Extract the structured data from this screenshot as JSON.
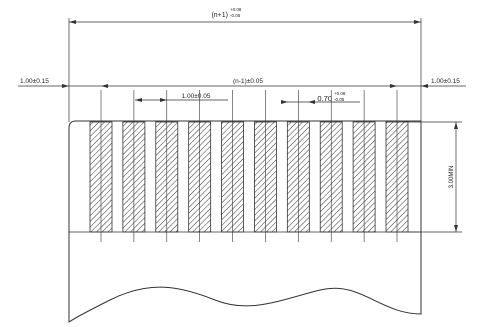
{
  "dimensions": {
    "overall_width": "(n+1)",
    "overall_width_tol_upper": "+0.08",
    "overall_width_tol_lower": "-0.05",
    "left_margin": "1.00±0.15",
    "pitch_span": "(n-1)±0.05",
    "right_margin": "1.00±0.15",
    "pitch": "1.00±0.05",
    "pad_width": "0.70",
    "pad_width_tol_upper": "+0.08",
    "pad_width_tol_lower": "-0.05",
    "pad_height": "3.00MIN"
  },
  "pad_count": 10
}
